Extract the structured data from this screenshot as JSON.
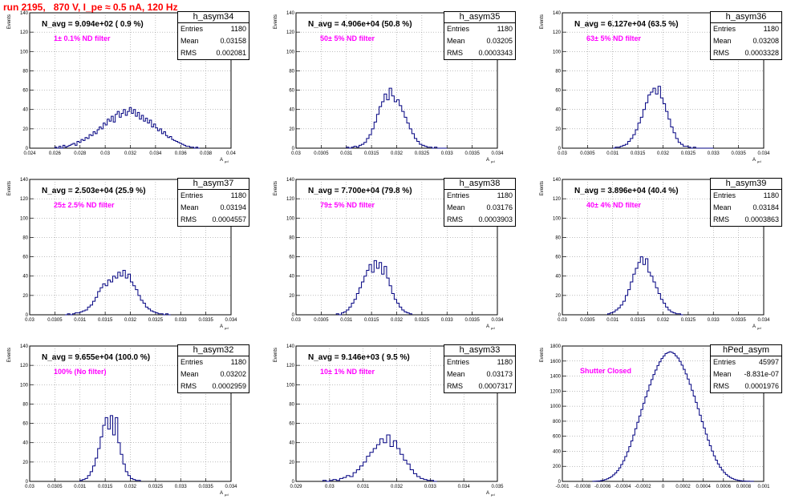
{
  "header": {
    "title": "run 2195,   870 V, I_pe ≈ 0.5 nA, 120 Hz"
  },
  "colors": {
    "title": "#ff0000",
    "annotation": "#ff00ff",
    "histogram": "#000080",
    "grid": "#808080"
  },
  "chart_data": [
    {
      "type": "bar",
      "name": "h_asym34",
      "title": "N_avg = 9.094e+02 ( 0.9 %)",
      "annotation": "1± 0.1% ND filter",
      "ylabel": "Events",
      "xlabel": "A",
      "xlabel_sub": "μd",
      "xlim": [
        0.024,
        0.04
      ],
      "xticks": [
        0.024,
        0.026,
        0.028,
        0.03,
        0.032,
        0.034,
        0.036,
        0.038,
        0.04
      ],
      "xtick_labels": [
        "0.024",
        "0.026",
        "0.028",
        "0.03",
        "0.032",
        "0.034",
        "0.036",
        "0.038",
        "0.04"
      ],
      "ylim": [
        0,
        140
      ],
      "yticks": [
        0,
        20,
        40,
        60,
        80,
        100,
        120,
        140
      ],
      "ytick_labels": [
        "0",
        "20",
        "40",
        "60",
        "80",
        "100",
        "120",
        "140"
      ],
      "stats": {
        "Entries": "1180",
        "Mean": "0.03158",
        "RMS": "0.002081"
      },
      "bins": {
        "start": 0.026,
        "width": 0.00016,
        "values": [
          1,
          0,
          2,
          0,
          3,
          1,
          2,
          3,
          4,
          5,
          3,
          7,
          6,
          9,
          8,
          11,
          10,
          14,
          13,
          17,
          15,
          19,
          22,
          20,
          26,
          24,
          30,
          28,
          33,
          27,
          35,
          38,
          32,
          36,
          40,
          34,
          38,
          42,
          36,
          40,
          33,
          37,
          30,
          34,
          28,
          31,
          26,
          29,
          22,
          25,
          21,
          18,
          20,
          15,
          17,
          13,
          11,
          12,
          9,
          8,
          7,
          6,
          5,
          4,
          3,
          2,
          2,
          1,
          1,
          0,
          1,
          0
        ]
      }
    },
    {
      "type": "bar",
      "name": "h_asym35",
      "title": "N_avg = 4.906e+04 (50.8 %)",
      "annotation": "50± 5% ND filter",
      "ylabel": "Events",
      "xlabel": "A",
      "xlabel_sub": "μd",
      "xlim": [
        0.03,
        0.034
      ],
      "xticks": [
        0.03,
        0.0305,
        0.031,
        0.0315,
        0.032,
        0.0325,
        0.033,
        0.0335,
        0.034
      ],
      "xtick_labels": [
        "0.03",
        "0.0305",
        "0.031",
        "0.0315",
        "0.032",
        "0.0325",
        "0.033",
        "0.0335",
        "0.034"
      ],
      "ylim": [
        0,
        140
      ],
      "yticks": [
        0,
        20,
        40,
        60,
        80,
        100,
        120,
        140
      ],
      "ytick_labels": [
        "0",
        "20",
        "40",
        "60",
        "80",
        "100",
        "120",
        "140"
      ],
      "stats": {
        "Entries": "1180",
        "Mean": "0.03205",
        "RMS": "0.0003343"
      },
      "bins": {
        "start": 0.031,
        "width": 5e-05,
        "values": [
          1,
          0,
          1,
          2,
          1,
          3,
          4,
          6,
          10,
          14,
          20,
          27,
          35,
          43,
          48,
          56,
          50,
          62,
          54,
          48,
          50,
          44,
          38,
          32,
          26,
          20,
          15,
          10,
          7,
          4,
          3,
          2,
          1,
          1,
          0,
          1,
          0,
          0,
          0,
          0
        ]
      }
    },
    {
      "type": "bar",
      "name": "h_asym36",
      "title": "N_avg = 6.127e+04 (63.5 %)",
      "annotation": "63± 5% ND filter",
      "ylabel": "Events",
      "xlabel": "A",
      "xlabel_sub": "μd",
      "xlim": [
        0.03,
        0.034
      ],
      "xticks": [
        0.03,
        0.0305,
        0.031,
        0.0315,
        0.032,
        0.0325,
        0.033,
        0.0335,
        0.034
      ],
      "xtick_labels": [
        "0.03",
        "0.0305",
        "0.031",
        "0.0315",
        "0.032",
        "0.0325",
        "0.033",
        "0.0335",
        "0.034"
      ],
      "ylim": [
        0,
        140
      ],
      "yticks": [
        0,
        20,
        40,
        60,
        80,
        100,
        120,
        140
      ],
      "ytick_labels": [
        "0",
        "20",
        "40",
        "60",
        "80",
        "100",
        "120",
        "140"
      ],
      "stats": {
        "Entries": "1180",
        "Mean": "0.03208",
        "RMS": "0.0003328"
      },
      "bins": {
        "start": 0.031,
        "width": 5e-05,
        "values": [
          0,
          1,
          1,
          2,
          3,
          4,
          7,
          10,
          14,
          19,
          26,
          32,
          40,
          47,
          55,
          58,
          62,
          56,
          64,
          52,
          46,
          38,
          30,
          22,
          16,
          10,
          6,
          4,
          2,
          2,
          1,
          0,
          1,
          0,
          0,
          0,
          0,
          0,
          0,
          0
        ]
      }
    },
    {
      "type": "bar",
      "name": "h_asym37",
      "title": "N_avg = 2.503e+04 (25.9 %)",
      "annotation": "25± 2.5% ND filter",
      "ylabel": "Events",
      "xlabel": "A",
      "xlabel_sub": "μd",
      "xlim": [
        0.03,
        0.034
      ],
      "xticks": [
        0.03,
        0.0305,
        0.031,
        0.0315,
        0.032,
        0.0325,
        0.033,
        0.0335,
        0.034
      ],
      "xtick_labels": [
        "0.03",
        "0.0305",
        "0.031",
        "0.0315",
        "0.032",
        "0.0325",
        "0.033",
        "0.0335",
        "0.034"
      ],
      "ylim": [
        0,
        140
      ],
      "yticks": [
        0,
        20,
        40,
        60,
        80,
        100,
        120,
        140
      ],
      "ytick_labels": [
        "0",
        "20",
        "40",
        "60",
        "80",
        "100",
        "120",
        "140"
      ],
      "stats": {
        "Entries": "1180",
        "Mean": "0.03194",
        "RMS": "0.0004557"
      },
      "bins": {
        "start": 0.0307,
        "width": 5e-05,
        "values": [
          0,
          1,
          0,
          1,
          2,
          2,
          3,
          4,
          5,
          8,
          10,
          14,
          18,
          24,
          28,
          32,
          30,
          36,
          34,
          40,
          38,
          44,
          40,
          46,
          38,
          42,
          34,
          30,
          26,
          20,
          15,
          12,
          8,
          6,
          4,
          3,
          2,
          1,
          1,
          0,
          1,
          0
        ]
      }
    },
    {
      "type": "bar",
      "name": "h_asym38",
      "title": "N_avg = 7.700e+04 (79.8 %)",
      "annotation": "79± 5% ND filter",
      "ylabel": "Events",
      "xlabel": "A",
      "xlabel_sub": "μd",
      "xlim": [
        0.03,
        0.034
      ],
      "xticks": [
        0.03,
        0.0305,
        0.031,
        0.0315,
        0.032,
        0.0325,
        0.033,
        0.0335,
        0.034
      ],
      "xtick_labels": [
        "0.03",
        "0.0305",
        "0.031",
        "0.0315",
        "0.032",
        "0.0325",
        "0.033",
        "0.0335",
        "0.034"
      ],
      "ylim": [
        0,
        140
      ],
      "yticks": [
        0,
        20,
        40,
        60,
        80,
        100,
        120,
        140
      ],
      "ytick_labels": [
        "0",
        "20",
        "40",
        "60",
        "80",
        "100",
        "120",
        "140"
      ],
      "stats": {
        "Entries": "1180",
        "Mean": "0.03176",
        "RMS": "0.0003903"
      },
      "bins": {
        "start": 0.0308,
        "width": 5e-05,
        "values": [
          1,
          0,
          2,
          3,
          5,
          8,
          12,
          16,
          22,
          28,
          34,
          40,
          46,
          52,
          44,
          56,
          48,
          54,
          42,
          50,
          38,
          30,
          22,
          16,
          12,
          8,
          5,
          3,
          2,
          1
        ]
      }
    },
    {
      "type": "bar",
      "name": "h_asym39",
      "title": "N_avg = 3.896e+04 (40.4 %)",
      "annotation": "40± 4% ND filter",
      "ylabel": "Events",
      "xlabel": "A",
      "xlabel_sub": "μd",
      "xlim": [
        0.03,
        0.034
      ],
      "xticks": [
        0.03,
        0.0305,
        0.031,
        0.0315,
        0.032,
        0.0325,
        0.033,
        0.0335,
        0.034
      ],
      "xtick_labels": [
        "0.03",
        "0.0305",
        "0.031",
        "0.0315",
        "0.032",
        "0.0325",
        "0.033",
        "0.0335",
        "0.034"
      ],
      "ylim": [
        0,
        140
      ],
      "yticks": [
        0,
        20,
        40,
        60,
        80,
        100,
        120,
        140
      ],
      "ytick_labels": [
        "0",
        "20",
        "40",
        "60",
        "80",
        "100",
        "120",
        "140"
      ],
      "stats": {
        "Entries": "1180",
        "Mean": "0.03184",
        "RMS": "0.0003863"
      },
      "bins": {
        "start": 0.0309,
        "width": 5e-05,
        "values": [
          1,
          2,
          3,
          5,
          7,
          10,
          14,
          20,
          26,
          34,
          42,
          48,
          54,
          60,
          52,
          58,
          44,
          40,
          34,
          28,
          22,
          16,
          12,
          8,
          5,
          3,
          2,
          1,
          1,
          0
        ]
      }
    },
    {
      "type": "bar",
      "name": "h_asym32",
      "title": "N_avg = 9.655e+04 (100.0 %)",
      "annotation": "100% (No filter)",
      "ylabel": "Events",
      "xlabel": "A",
      "xlabel_sub": "μd",
      "xlim": [
        0.03,
        0.034
      ],
      "xticks": [
        0.03,
        0.0305,
        0.031,
        0.0315,
        0.032,
        0.0325,
        0.033,
        0.0335,
        0.034
      ],
      "xtick_labels": [
        "0.03",
        "0.0305",
        "0.031",
        "0.0315",
        "0.032",
        "0.0325",
        "0.033",
        "0.0335",
        "0.034"
      ],
      "ylim": [
        0,
        140
      ],
      "yticks": [
        0,
        20,
        40,
        60,
        80,
        100,
        120,
        140
      ],
      "ytick_labels": [
        "0",
        "20",
        "40",
        "60",
        "80",
        "100",
        "120",
        "140"
      ],
      "stats": {
        "Entries": "1180",
        "Mean": "0.03202",
        "RMS": "0.0002959"
      },
      "bins": {
        "start": 0.031,
        "width": 5e-05,
        "values": [
          1,
          2,
          3,
          6,
          10,
          16,
          24,
          34,
          46,
          58,
          66,
          54,
          68,
          48,
          66,
          40,
          28,
          18,
          10,
          6,
          3,
          2,
          1,
          1
        ]
      }
    },
    {
      "type": "bar",
      "name": "h_asym33",
      "title": "N_avg = 9.146e+03 ( 9.5 %)",
      "annotation": "10± 1% ND filter",
      "ylabel": "Events",
      "xlabel": "A",
      "xlabel_sub": "μd",
      "xlim": [
        0.029,
        0.035
      ],
      "xticks": [
        0.029,
        0.03,
        0.031,
        0.032,
        0.033,
        0.034,
        0.035
      ],
      "xtick_labels": [
        "0.029",
        "0.03",
        "0.031",
        "0.032",
        "0.033",
        "0.034",
        "0.035"
      ],
      "ylim": [
        0,
        140
      ],
      "yticks": [
        0,
        20,
        40,
        60,
        80,
        100,
        120,
        140
      ],
      "ytick_labels": [
        "0",
        "20",
        "40",
        "60",
        "80",
        "100",
        "120",
        "140"
      ],
      "stats": {
        "Entries": "1180",
        "Mean": "0.03173",
        "RMS": "0.0007317"
      },
      "bins": {
        "start": 0.0298,
        "width": 0.0001,
        "values": [
          1,
          0,
          1,
          2,
          1,
          3,
          4,
          6,
          5,
          9,
          12,
          16,
          20,
          26,
          30,
          34,
          38,
          44,
          40,
          48,
          36,
          42,
          34,
          28,
          22,
          18,
          12,
          8,
          5,
          3,
          2,
          1,
          1,
          0
        ]
      }
    },
    {
      "type": "bar",
      "name": "hPed_asym",
      "title": "",
      "annotation": "Shutter Closed",
      "ylabel": "Events",
      "xlabel": "",
      "xlabel_sub": "",
      "xlim": [
        -0.001,
        0.001
      ],
      "xticks": [
        -0.001,
        -0.0008,
        -0.0006,
        -0.0004,
        -0.0002,
        0,
        0.0002,
        0.0004,
        0.0006,
        0.0008,
        0.001
      ],
      "xtick_labels": [
        "-0.001",
        "-0.0008",
        "-0.0006",
        "-0.0004",
        "-0.0002",
        "0",
        "0.0002",
        "0.0004",
        "0.0006",
        "0.0008",
        "0.001"
      ],
      "ylim": [
        0,
        1800
      ],
      "yticks": [
        0,
        200,
        400,
        600,
        800,
        1000,
        1200,
        1400,
        1600,
        1800
      ],
      "ytick_labels": [
        "0",
        "200",
        "400",
        "600",
        "800",
        "1000",
        "1200",
        "1400",
        "1600",
        "1800"
      ],
      "stats": {
        "Entries": "45997",
        "Mean": "-8.831e-07",
        "RMS": "0.0001976"
      },
      "bins": {
        "start": -0.0007,
        "width": 2e-05,
        "values": [
          1,
          2,
          4,
          6,
          10,
          16,
          24,
          34,
          48,
          64,
          86,
          112,
          142,
          180,
          224,
          274,
          330,
          394,
          462,
          538,
          616,
          700,
          786,
          870,
          956,
          1040,
          1124,
          1204,
          1282,
          1354,
          1420,
          1480,
          1540,
          1590,
          1634,
          1668,
          1700,
          1712,
          1724,
          1716,
          1700,
          1670,
          1640,
          1596,
          1546,
          1490,
          1428,
          1360,
          1290,
          1212,
          1134,
          1050,
          966,
          880,
          794,
          710,
          628,
          548,
          474,
          404,
          340,
          282,
          232,
          188,
          150,
          118,
          92,
          70,
          52,
          38,
          28,
          20,
          14,
          9,
          6,
          4,
          3,
          2,
          1,
          1
        ]
      }
    }
  ]
}
